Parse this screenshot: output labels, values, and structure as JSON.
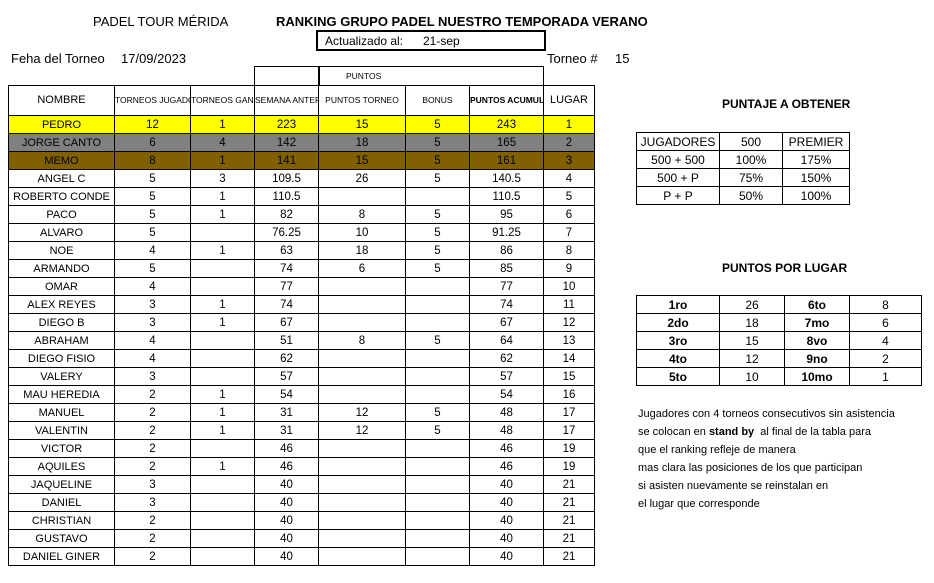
{
  "header": {
    "org": "PADEL TOUR MÉRIDA",
    "title": "RANKING GRUPO PADEL NUESTRO TEMPORADA VERANO",
    "updated_label": "Actualizado al:",
    "updated_value": "21-sep",
    "date_label": "Feha del Torneo",
    "date_value": "17/09/2023",
    "torneo_label": "Torneo #",
    "torneo_value": "15"
  },
  "ranking": {
    "group_header": "PUNTOS",
    "columns": [
      "NOMBRE",
      "TORNEOS JUGADOS",
      "TORNEOS GANADOS",
      "SEMANA ANTERIOR",
      "PUNTOS TORNEO",
      "BONUS",
      "PUNTOS ACUMULADOS",
      "LUGAR"
    ],
    "row_colors": {
      "1": "#ffff00",
      "2": "#808080",
      "3": "#806000"
    },
    "rows": [
      [
        "PEDRO",
        "12",
        "1",
        "223",
        "15",
        "5",
        "243",
        "1"
      ],
      [
        "JORGE CANTO",
        "6",
        "4",
        "142",
        "18",
        "5",
        "165",
        "2"
      ],
      [
        "MEMO",
        "8",
        "1",
        "141",
        "15",
        "5",
        "161",
        "3"
      ],
      [
        "ANGEL C",
        "5",
        "3",
        "109.5",
        "26",
        "5",
        "140.5",
        "4"
      ],
      [
        "ROBERTO CONDE",
        "5",
        "1",
        "110.5",
        "",
        "",
        "110.5",
        "5"
      ],
      [
        "PACO",
        "5",
        "1",
        "82",
        "8",
        "5",
        "95",
        "6"
      ],
      [
        "ALVARO",
        "5",
        "",
        "76.25",
        "10",
        "5",
        "91.25",
        "7"
      ],
      [
        "NOE",
        "4",
        "1",
        "63",
        "18",
        "5",
        "86",
        "8"
      ],
      [
        "ARMANDO",
        "5",
        "",
        "74",
        "6",
        "5",
        "85",
        "9"
      ],
      [
        "OMAR",
        "4",
        "",
        "77",
        "",
        "",
        "77",
        "10"
      ],
      [
        "ALEX REYES",
        "3",
        "1",
        "74",
        "",
        "",
        "74",
        "11"
      ],
      [
        "DIEGO B",
        "3",
        "1",
        "67",
        "",
        "",
        "67",
        "12"
      ],
      [
        "ABRAHAM",
        "4",
        "",
        "51",
        "8",
        "5",
        "64",
        "13"
      ],
      [
        "DIEGO FISIO",
        "4",
        "",
        "62",
        "",
        "",
        "62",
        "14"
      ],
      [
        "VALERY",
        "3",
        "",
        "57",
        "",
        "",
        "57",
        "15"
      ],
      [
        "MAU HEREDIA",
        "2",
        "1",
        "54",
        "",
        "",
        "54",
        "16"
      ],
      [
        "MANUEL",
        "2",
        "1",
        "31",
        "12",
        "5",
        "48",
        "17"
      ],
      [
        "VALENTIN",
        "2",
        "1",
        "31",
        "12",
        "5",
        "48",
        "17"
      ],
      [
        "VICTOR",
        "2",
        "",
        "46",
        "",
        "",
        "46",
        "19"
      ],
      [
        "AQUILES",
        "2",
        "1",
        "46",
        "",
        "",
        "46",
        "19"
      ],
      [
        "JAQUELINE",
        "3",
        "",
        "40",
        "",
        "",
        "40",
        "21"
      ],
      [
        "DANIEL",
        "3",
        "",
        "40",
        "",
        "",
        "40",
        "21"
      ],
      [
        "CHRISTIAN",
        "2",
        "",
        "40",
        "",
        "",
        "40",
        "21"
      ],
      [
        "GUSTAVO",
        "2",
        "",
        "40",
        "",
        "",
        "40",
        "21"
      ],
      [
        "DANIEL GINER",
        "2",
        "",
        "40",
        "",
        "",
        "40",
        "21"
      ]
    ]
  },
  "puntaje": {
    "title": "PUNTAJE A OBTENER",
    "rows": [
      [
        "JUGADORES",
        "500",
        "PREMIER"
      ],
      [
        "500 + 500",
        "100%",
        "175%"
      ],
      [
        "500 + P",
        "75%",
        "150%"
      ],
      [
        "P + P",
        "50%",
        "100%"
      ]
    ]
  },
  "lugar": {
    "title": "PUNTOS POR LUGAR",
    "rows": [
      [
        "1ro",
        "26",
        "6to",
        "8"
      ],
      [
        "2do",
        "18",
        "7mo",
        "6"
      ],
      [
        "3ro",
        "15",
        "8vo",
        "4"
      ],
      [
        "4to",
        "12",
        "9no",
        "2"
      ],
      [
        "5to",
        "10",
        "10mo",
        "1"
      ]
    ]
  },
  "note": {
    "line1": "Jugadores con 4 torneos consecutivos sin asistencia",
    "line2_pre": "se colocan en ",
    "line2_bold": "stand by",
    "line2_post": "  al final de la tabla para",
    "line3": "que el ranking refleje de manera",
    "line4": "mas clara las posiciones de los que participan",
    "line5": "si asisten nuevamente se reinstalan en",
    "line6": "el lugar que corresponde"
  }
}
